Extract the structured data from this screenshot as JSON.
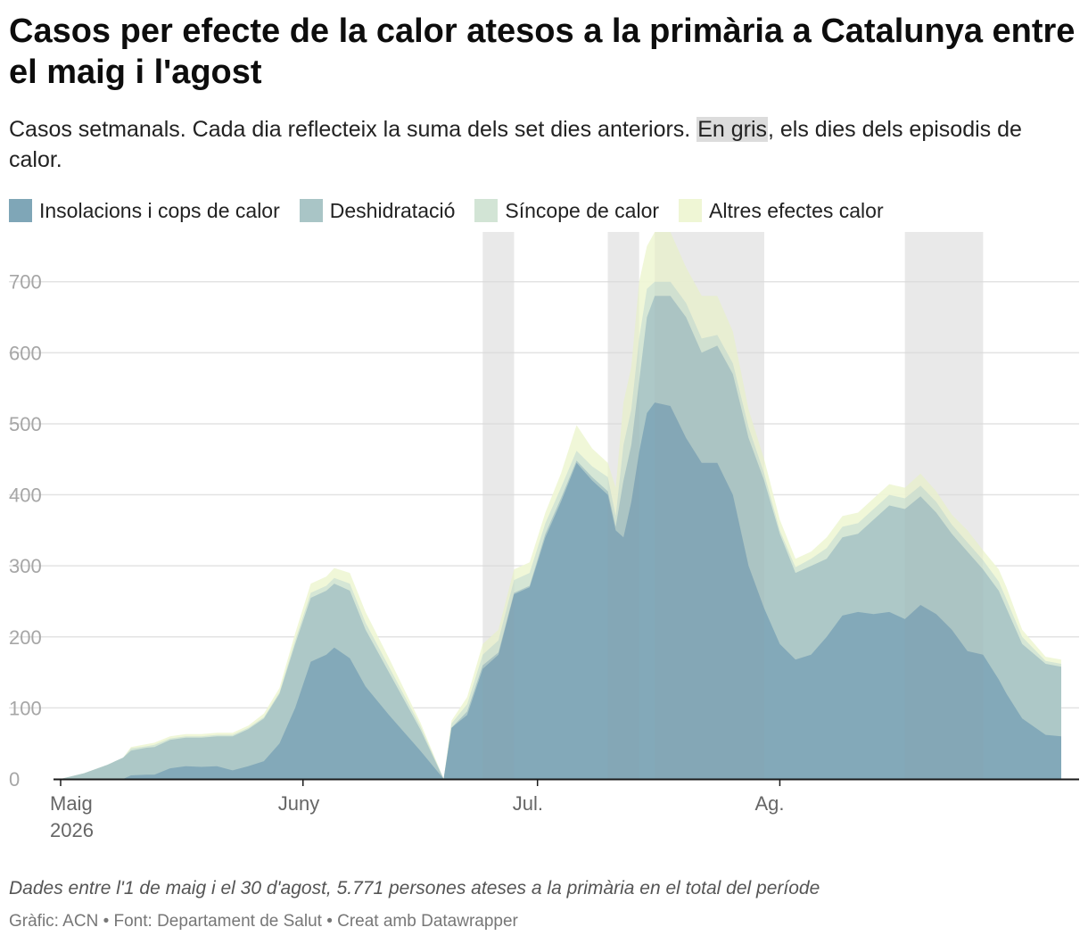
{
  "title": "Casos per efecte de la calor atesos a la primària a Catalunya entre el maig i l'agost",
  "subtitle": {
    "before": "Casos setmanals. Cada dia reflecteix la suma dels set dies anteriors.",
    "highlight": "En gris",
    "after": ", els dies dels episodis de calor."
  },
  "legend": [
    {
      "label": "Insolacions i cops de calor",
      "color": "#7fa6b7"
    },
    {
      "label": "Deshidratació",
      "color": "#a9c5c6"
    },
    {
      "label": "Síncope de calor",
      "color": "#d2e4d5"
    },
    {
      "label": "Altres efectes calor",
      "color": "#eff6d5"
    }
  ],
  "note": "Dades entre l'1 de maig i el 30 d'agost, 5.771 persones ateses a la primària en el total del període",
  "footer": "Gràfic: ACN • Font: Departament de Salut • Creat amb Datawrapper",
  "chart_data": {
    "type": "area",
    "stacked": true,
    "x_unit": "dia",
    "x_start": "2026-05-01",
    "x_end": "2026-08-30",
    "ylim": [
      0,
      770
    ],
    "yticks": [
      0,
      100,
      200,
      300,
      400,
      500,
      600,
      700
    ],
    "xticks": [
      {
        "day": 0,
        "label": "Maig",
        "label2": "2026"
      },
      {
        "day": 31,
        "label": "Juny"
      },
      {
        "day": 61,
        "label": "Jul."
      },
      {
        "day": 92,
        "label": "Ag."
      }
    ],
    "heat_episodes": [
      [
        54,
        58
      ],
      [
        70,
        74
      ],
      [
        76,
        90
      ],
      [
        108,
        118
      ]
    ],
    "grid": true,
    "keyframes": [
      {
        "day": 0,
        "totals": [
          0,
          0,
          0,
          0
        ]
      },
      {
        "day": 3,
        "totals": [
          0,
          8,
          8,
          8
        ]
      },
      {
        "day": 6,
        "totals": [
          0,
          20,
          20,
          20
        ]
      },
      {
        "day": 8,
        "totals": [
          0,
          30,
          30,
          30
        ]
      },
      {
        "day": 9,
        "totals": [
          5,
          40,
          43,
          45
        ]
      },
      {
        "day": 11,
        "totals": [
          6,
          44,
          46,
          49
        ]
      },
      {
        "day": 12,
        "totals": [
          6,
          45,
          48,
          51
        ]
      },
      {
        "day": 14,
        "totals": [
          15,
          55,
          57,
          60
        ]
      },
      {
        "day": 16,
        "totals": [
          18,
          58,
          60,
          63
        ]
      },
      {
        "day": 18,
        "totals": [
          17,
          58,
          60,
          63
        ]
      },
      {
        "day": 20,
        "totals": [
          18,
          60,
          62,
          65
        ]
      },
      {
        "day": 22,
        "totals": [
          12,
          60,
          62,
          65
        ]
      },
      {
        "day": 24,
        "totals": [
          18,
          70,
          72,
          75
        ]
      },
      {
        "day": 26,
        "totals": [
          25,
          85,
          87,
          92
        ]
      },
      {
        "day": 28,
        "totals": [
          50,
          120,
          122,
          128
        ]
      },
      {
        "day": 30,
        "totals": [
          100,
          190,
          195,
          205
        ]
      },
      {
        "day": 32,
        "totals": [
          165,
          255,
          262,
          275
        ]
      },
      {
        "day": 34,
        "totals": [
          175,
          265,
          272,
          285
        ]
      },
      {
        "day": 35,
        "totals": [
          185,
          275,
          283,
          297
        ]
      },
      {
        "day": 37,
        "totals": [
          170,
          265,
          275,
          290
        ]
      },
      {
        "day": 39,
        "totals": [
          130,
          210,
          220,
          235
        ]
      },
      {
        "day": 42,
        "totals": [
          90,
          150,
          158,
          170
        ]
      },
      {
        "day": 46,
        "totals": [
          40,
          70,
          75,
          80
        ]
      },
      {
        "day": 49,
        "totals": [
          0,
          0,
          0,
          0
        ]
      },
      {
        "day": 50,
        "totals": [
          72,
          72,
          78,
          82
        ]
      },
      {
        "day": 52,
        "totals": [
          90,
          95,
          105,
          115
        ]
      },
      {
        "day": 54,
        "totals": [
          155,
          160,
          175,
          190
        ]
      },
      {
        "day": 56,
        "totals": [
          175,
          178,
          195,
          210
        ]
      },
      {
        "day": 58,
        "totals": [
          260,
          262,
          280,
          295
        ]
      },
      {
        "day": 60,
        "totals": [
          270,
          272,
          290,
          305
        ]
      },
      {
        "day": 62,
        "totals": [
          340,
          345,
          360,
          375
        ]
      },
      {
        "day": 64,
        "totals": [
          390,
          395,
          410,
          430
        ]
      },
      {
        "day": 66,
        "totals": [
          445,
          448,
          462,
          498
        ]
      },
      {
        "day": 68,
        "totals": [
          420,
          425,
          440,
          465
        ]
      },
      {
        "day": 70,
        "totals": [
          400,
          405,
          425,
          445
        ]
      },
      {
        "day": 71,
        "totals": [
          350,
          355,
          370,
          410
        ]
      },
      {
        "day": 72,
        "totals": [
          340,
          420,
          470,
          530
        ]
      },
      {
        "day": 73,
        "totals": [
          390,
          470,
          520,
          580
        ]
      },
      {
        "day": 74,
        "totals": [
          460,
          560,
          620,
          700
        ]
      },
      {
        "day": 75,
        "totals": [
          515,
          650,
          690,
          750
        ]
      },
      {
        "day": 76,
        "totals": [
          530,
          680,
          700,
          770
        ]
      },
      {
        "day": 78,
        "totals": [
          525,
          680,
          700,
          770
        ]
      },
      {
        "day": 80,
        "totals": [
          480,
          650,
          670,
          720
        ]
      },
      {
        "day": 82,
        "totals": [
          445,
          600,
          620,
          680
        ]
      },
      {
        "day": 84,
        "totals": [
          445,
          610,
          625,
          680
        ]
      },
      {
        "day": 86,
        "totals": [
          400,
          570,
          585,
          630
        ]
      },
      {
        "day": 88,
        "totals": [
          300,
          480,
          495,
          520
        ]
      },
      {
        "day": 90,
        "totals": [
          240,
          420,
          430,
          450
        ]
      },
      {
        "day": 92,
        "totals": [
          190,
          345,
          350,
          365
        ]
      },
      {
        "day": 94,
        "totals": [
          168,
          290,
          298,
          310
        ]
      },
      {
        "day": 96,
        "totals": [
          175,
          300,
          310,
          320
        ]
      },
      {
        "day": 98,
        "totals": [
          200,
          310,
          325,
          340
        ]
      },
      {
        "day": 100,
        "totals": [
          230,
          340,
          355,
          370
        ]
      },
      {
        "day": 102,
        "totals": [
          235,
          345,
          360,
          375
        ]
      },
      {
        "day": 104,
        "totals": [
          232,
          365,
          380,
          395
        ]
      },
      {
        "day": 106,
        "totals": [
          235,
          385,
          400,
          415
        ]
      },
      {
        "day": 108,
        "totals": [
          225,
          380,
          395,
          410
        ]
      },
      {
        "day": 110,
        "totals": [
          245,
          398,
          413,
          430
        ]
      },
      {
        "day": 112,
        "totals": [
          232,
          375,
          390,
          405
        ]
      },
      {
        "day": 114,
        "totals": [
          210,
          345,
          358,
          372
        ]
      },
      {
        "day": 116,
        "totals": [
          180,
          320,
          333,
          350
        ]
      },
      {
        "day": 118,
        "totals": [
          175,
          295,
          308,
          322
        ]
      },
      {
        "day": 120,
        "totals": [
          140,
          265,
          278,
          295
        ]
      },
      {
        "day": 121,
        "totals": [
          120,
          240,
          253,
          270
        ]
      },
      {
        "day": 123,
        "totals": [
          85,
          190,
          200,
          210
        ]
      },
      {
        "day": 126,
        "totals": [
          62,
          162,
          166,
          172
        ]
      },
      {
        "day": 128,
        "totals": [
          60,
          158,
          162,
          168
        ]
      }
    ]
  }
}
